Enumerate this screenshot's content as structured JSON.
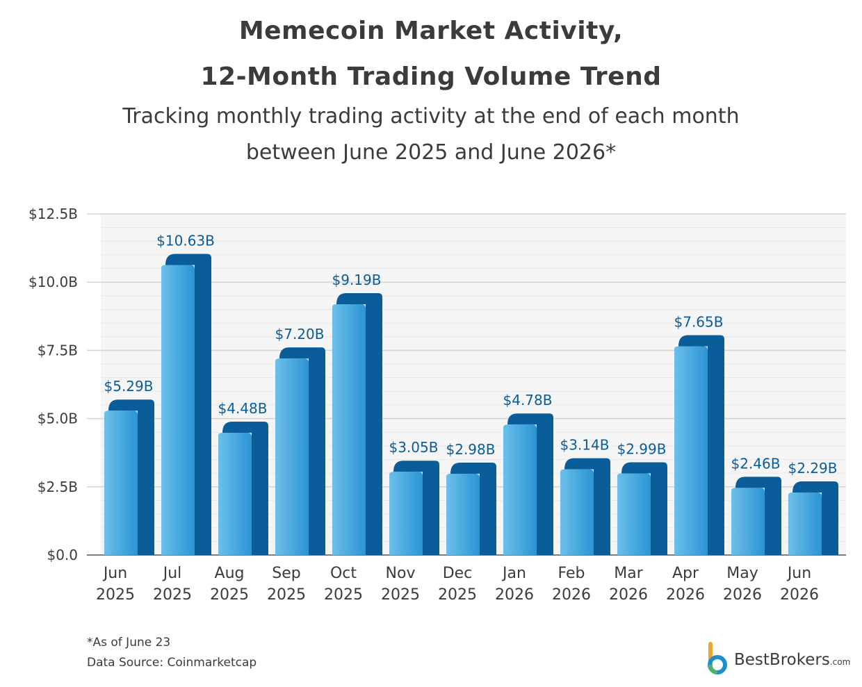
{
  "header": {
    "title_line1": "Memecoin Market Activity,",
    "title_line2": "12-Month Trading Volume Trend",
    "subtitle_line1": "Tracking monthly trading activity at the end of each month",
    "subtitle_line2": "between June 2025 and June 2026*"
  },
  "footer": {
    "note": "*As of June 23",
    "source": "Data Source: Coinmarketcap"
  },
  "logo": {
    "name": "BestBrokers",
    "suffix": ".com"
  },
  "colors": {
    "bar_front_light": "#5db6e4",
    "bar_front_dark": "#1f8fd0",
    "bar_side": "#0a5d99",
    "label": "#0a5d99",
    "grid": "#dddddd",
    "plot_bg": "#f5f5f5"
  },
  "chart_data": {
    "type": "bar",
    "categories": [
      [
        "Jun",
        "2025"
      ],
      [
        "Jul",
        "2025"
      ],
      [
        "Aug",
        "2025"
      ],
      [
        "Sep",
        "2025"
      ],
      [
        "Oct",
        "2025"
      ],
      [
        "Nov",
        "2025"
      ],
      [
        "Dec",
        "2025"
      ],
      [
        "Jan",
        "2026"
      ],
      [
        "Feb",
        "2026"
      ],
      [
        "Mar",
        "2026"
      ],
      [
        "Apr",
        "2026"
      ],
      [
        "May",
        "2026"
      ],
      [
        "Jun",
        "2026"
      ]
    ],
    "values": [
      5.29,
      10.63,
      4.48,
      7.2,
      9.19,
      3.05,
      2.98,
      4.78,
      3.14,
      2.99,
      7.65,
      2.46,
      2.29
    ],
    "data_labels": [
      "$5.29B",
      "$10.63B",
      "$4.48B",
      "$7.20B",
      "$9.19B",
      "$3.05B",
      "$2.98B",
      "$4.78B",
      "$3.14B",
      "$2.99B",
      "$7.65B",
      "$2.46B",
      "$2.29B"
    ],
    "y_ticks": [
      0,
      2.5,
      5.0,
      7.5,
      10.0,
      12.5
    ],
    "y_tick_labels": [
      "$0.0",
      "$2.5B",
      "$5.0B",
      "$7.5B",
      "$10.0B",
      "$12.5B"
    ],
    "ylim": [
      0,
      12.5
    ],
    "unit": "$B",
    "grid": true,
    "legend": "none"
  }
}
